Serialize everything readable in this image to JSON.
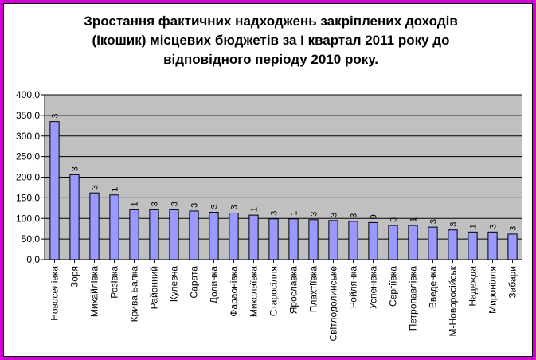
{
  "title_lines": [
    "Зростання фактичних надходжень закріплених доходів",
    "(Ікошик) місцевих бюджетів за І квартал 2011 року до",
    "відповідного періоду 2010 року."
  ],
  "colors": {
    "background": "#d400d4",
    "plot": "#c0c0c0",
    "bar": "#9999ff",
    "bar_edge": "#000000"
  },
  "chart_data": {
    "type": "bar",
    "title": "Зростання фактичних надходжень закріплених доходів (Ікошик) місцевих бюджетів за І квартал 2011 року до відповідного періоду 2010 року.",
    "categories": [
      "Новоселівка",
      "Зоря",
      "Михайлівка",
      "Розівка",
      "Крива Балка",
      "Районний",
      "Кулевча",
      "Сарата",
      "Долинка",
      "Фараонівка",
      "Миколаївка",
      "Старосілля",
      "Ярославка",
      "Плахтіївка",
      "Світлодолинське",
      "Ройлянка",
      "Успенівка",
      "Сергіївка",
      "Петропавлівка",
      "Введенка",
      "М-Новоросійськ",
      "Надежда",
      "Миронілля",
      "Забари"
    ],
    "values": [
      335,
      206,
      162,
      157,
      121,
      121,
      121,
      118,
      115,
      113,
      108,
      99,
      99,
      97,
      95,
      93,
      90,
      83,
      83,
      79,
      72,
      67,
      67,
      62
    ],
    "data_labels": [
      "3",
      "3",
      "3",
      "1",
      "1",
      "3",
      "3",
      "3",
      "3",
      "3",
      "1",
      "3",
      "1",
      "3",
      "3",
      "3",
      "9",
      "3",
      "1",
      "3",
      "3",
      "1",
      "3",
      "3"
    ],
    "ylim": [
      0,
      400
    ],
    "yticks": [
      "0,0",
      "50,0",
      "100,0",
      "150,0",
      "200,0",
      "250,0",
      "300,0",
      "350,0",
      "400,0"
    ],
    "grid": true,
    "xlabel": "",
    "ylabel": ""
  }
}
